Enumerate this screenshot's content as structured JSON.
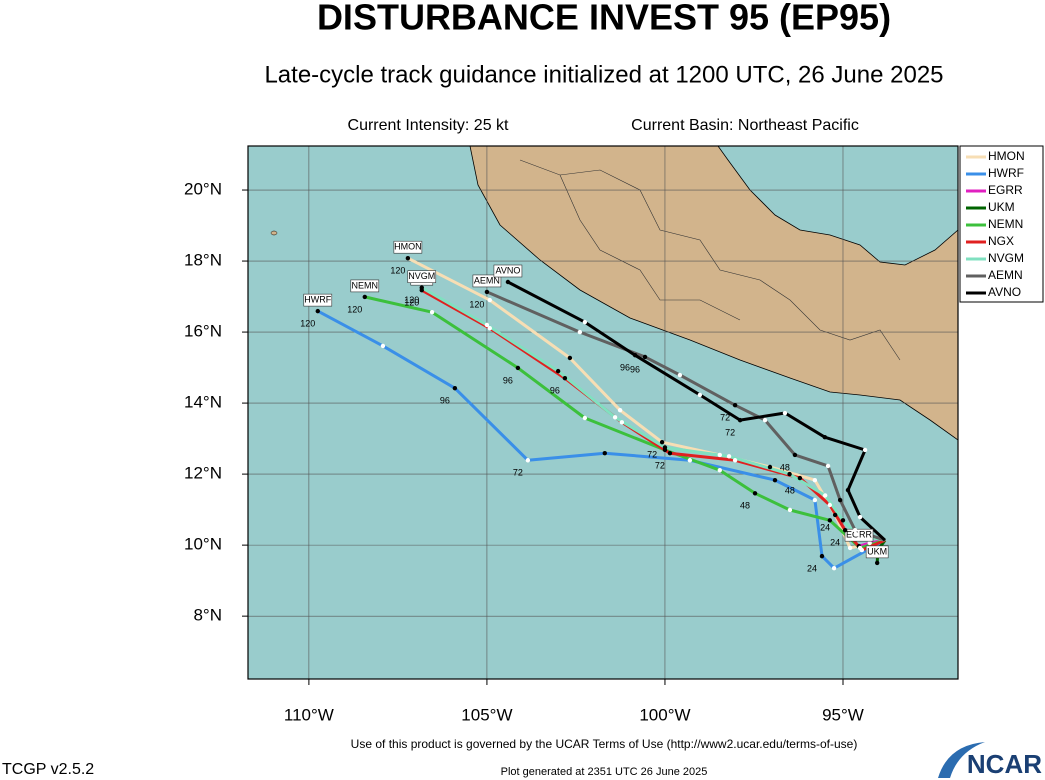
{
  "chart_data": {
    "type": "map",
    "title": "DISTURBANCE INVEST 95 (EP95)",
    "subtitle": "Late-cycle track guidance initialized at 1200 UTC, 26 June 2025",
    "intensity": "Current Intensity: 25 kt",
    "basin": "Current Basin: Northeast Pacific",
    "terms": "Use of this product is governed by the UCAR Terms of Use (http://www2.ucar.edu/terms-of-use)",
    "version": "TCGP v2.5.2",
    "generated": "Plot generated at 2351 UTC   26 June 2025",
    "logo": "NCAR",
    "xlim": [
      -111.71,
      -91.77
    ],
    "ylim": [
      6.23,
      21.24
    ],
    "xticks": [
      {
        "value": -110,
        "label": "110°W"
      },
      {
        "value": -105,
        "label": "105°W"
      },
      {
        "value": -100,
        "label": "100°W"
      },
      {
        "value": -95,
        "label": "95°W"
      }
    ],
    "yticks": [
      {
        "value": 8,
        "label": "8°N"
      },
      {
        "value": 10,
        "label": "10°N"
      },
      {
        "value": 12,
        "label": "12°N"
      },
      {
        "value": 14,
        "label": "14°N"
      },
      {
        "value": 16,
        "label": "16°N"
      },
      {
        "value": 18,
        "label": "18°N"
      },
      {
        "value": 20,
        "label": "20°N"
      }
    ],
    "grid": true,
    "legend": "right",
    "series": [
      {
        "name": "HMON",
        "color": "#f7deb4",
        "x": [
          -93.82,
          -94.8,
          -95.22,
          -95.79,
          -97.05,
          -98.46,
          -100.08,
          -101.26,
          -102.67,
          -104.92,
          -107.22
        ],
        "values": [
          10.14,
          9.92,
          10.85,
          11.83,
          12.2,
          12.54,
          12.9,
          13.8,
          15.27,
          16.9,
          18.08
        ],
        "point_labels": [
          null,
          null,
          "24",
          null,
          null,
          null,
          "72",
          null,
          null,
          null,
          "120"
        ]
      },
      {
        "name": "HWRF",
        "color": "#3a8fe8",
        "x": [
          -93.82,
          -95.25,
          -95.59,
          -95.79,
          -96.91,
          -99.3,
          -101.69,
          -103.85,
          -105.9,
          -107.92,
          -109.75
        ],
        "values": [
          10.14,
          9.35,
          9.69,
          11.27,
          11.83,
          12.39,
          12.59,
          12.39,
          14.42,
          15.61,
          16.59
        ],
        "point_labels": [
          null,
          null,
          "24",
          null,
          null,
          null,
          null,
          "72",
          "96",
          null,
          "120"
        ]
      },
      {
        "name": "EGRR",
        "color": "#e020c0",
        "x": [
          -93.82,
          -94.25,
          -94.55
        ],
        "values": [
          10.14,
          10.06,
          9.97
        ],
        "point_labels": [
          null,
          null,
          null
        ]
      },
      {
        "name": "UKM",
        "color": "#006400",
        "x": [
          -93.82,
          -94.02,
          -94.04
        ],
        "values": [
          10.14,
          9.86,
          9.5
        ],
        "point_labels": [
          null,
          null,
          null
        ]
      },
      {
        "name": "NEMN",
        "color": "#3cc03c",
        "x": [
          -93.82,
          -94.52,
          -95.37,
          -96.49,
          -97.47,
          -98.46,
          -100.0,
          -102.25,
          -104.13,
          -106.54,
          -108.43
        ],
        "values": [
          10.14,
          9.92,
          10.7,
          10.99,
          11.46,
          12.11,
          12.68,
          13.58,
          14.99,
          16.56,
          16.99
        ],
        "point_labels": [
          null,
          null,
          null,
          null,
          "48",
          null,
          null,
          null,
          "96",
          null,
          "120"
        ]
      },
      {
        "name": "NGX",
        "color": "#e02020",
        "x": [
          -93.82,
          -94.47,
          -94.94,
          -95.37,
          -96.21,
          -98.03,
          -99.86,
          -101.21,
          -102.81,
          -104.92,
          -106.83
        ],
        "values": [
          10.14,
          9.86,
          10.42,
          11.13,
          11.89,
          12.39,
          12.59,
          13.46,
          14.7,
          16.11,
          17.18
        ],
        "point_labels": [
          null,
          null,
          "24",
          null,
          "48",
          null,
          "72",
          null,
          "96",
          null,
          "120"
        ]
      },
      {
        "name": "NVGM",
        "color": "#80e0c0",
        "x": [
          -93.82,
          -94.6,
          -95.0,
          -95.5,
          -96.5,
          -98.2,
          -100.0,
          -101.4,
          -103.0,
          -105.0,
          -106.83
        ],
        "values": [
          10.14,
          10.3,
          10.7,
          11.4,
          12.0,
          12.5,
          12.75,
          13.6,
          14.9,
          16.2,
          17.25
        ],
        "point_labels": [
          null,
          null,
          null,
          null,
          null,
          null,
          null,
          null,
          null,
          null,
          "120"
        ]
      },
      {
        "name": "AEMN",
        "color": "#606060",
        "x": [
          -93.82,
          -94.66,
          -95.08,
          -95.42,
          -96.35,
          -97.19,
          -98.03,
          -99.58,
          -100.56,
          -102.39,
          -105.0
        ],
        "values": [
          10.14,
          10.42,
          11.27,
          12.23,
          12.54,
          13.52,
          13.94,
          14.79,
          15.3,
          16.0,
          17.13
        ],
        "point_labels": [
          null,
          null,
          null,
          null,
          "48",
          null,
          "72",
          null,
          "96",
          null,
          "120"
        ]
      },
      {
        "name": "AVNO",
        "color": "#000000",
        "x": [
          -93.82,
          -94.52,
          -94.86,
          -94.38,
          -95.51,
          -96.63,
          -97.89,
          -99.02,
          -100.84,
          -102.25,
          -104.41
        ],
        "values": [
          10.14,
          10.79,
          11.55,
          12.68,
          13.04,
          13.72,
          13.52,
          14.23,
          15.35,
          16.28,
          17.41
        ],
        "point_labels": [
          null,
          null,
          null,
          null,
          null,
          null,
          "72",
          null,
          "96",
          null,
          null
        ]
      }
    ]
  }
}
